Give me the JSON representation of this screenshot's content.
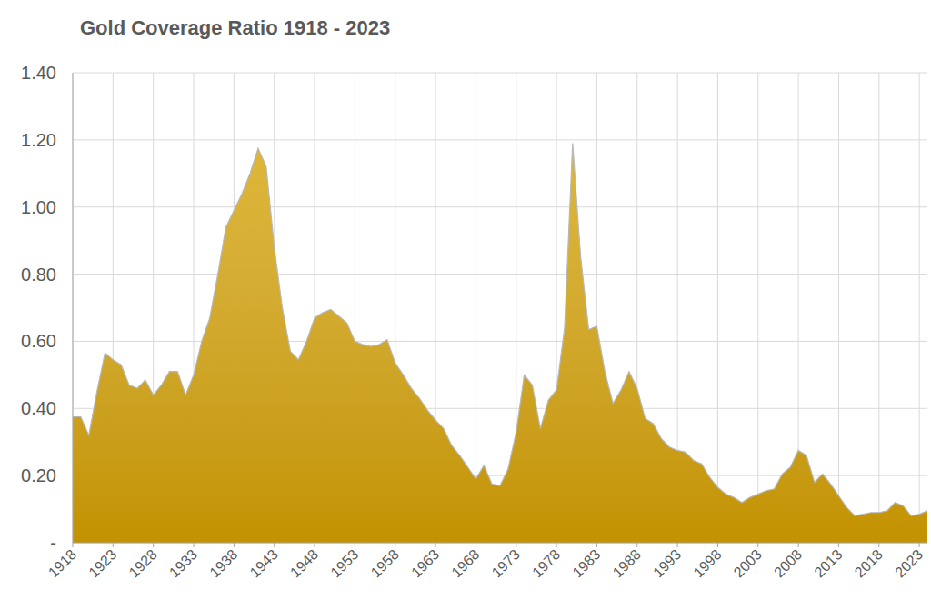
{
  "chart_data": {
    "type": "area",
    "title": "Gold Coverage Ratio 1918 - 2023",
    "x": [
      1918,
      1919,
      1920,
      1921,
      1922,
      1923,
      1924,
      1925,
      1926,
      1927,
      1928,
      1929,
      1930,
      1931,
      1932,
      1933,
      1934,
      1935,
      1936,
      1937,
      1938,
      1939,
      1940,
      1941,
      1942,
      1943,
      1944,
      1945,
      1946,
      1947,
      1948,
      1949,
      1950,
      1951,
      1952,
      1953,
      1954,
      1955,
      1956,
      1957,
      1958,
      1959,
      1960,
      1961,
      1962,
      1963,
      1964,
      1965,
      1966,
      1967,
      1968,
      1969,
      1970,
      1971,
      1972,
      1973,
      1974,
      1975,
      1976,
      1977,
      1978,
      1979,
      1980,
      1981,
      1982,
      1983,
      1984,
      1985,
      1986,
      1987,
      1988,
      1989,
      1990,
      1991,
      1992,
      1993,
      1994,
      1995,
      1996,
      1997,
      1998,
      1999,
      2000,
      2001,
      2002,
      2003,
      2004,
      2005,
      2006,
      2007,
      2008,
      2009,
      2010,
      2011,
      2012,
      2013,
      2014,
      2015,
      2016,
      2017,
      2018,
      2019,
      2020,
      2021,
      2022,
      2023,
      2024
    ],
    "values": [
      0.375,
      0.375,
      0.32,
      0.45,
      0.565,
      0.545,
      0.53,
      0.47,
      0.46,
      0.485,
      0.44,
      0.47,
      0.51,
      0.51,
      0.44,
      0.5,
      0.6,
      0.67,
      0.8,
      0.94,
      0.99,
      1.04,
      1.1,
      1.175,
      1.12,
      0.88,
      0.7,
      0.57,
      0.545,
      0.6,
      0.67,
      0.685,
      0.695,
      0.675,
      0.655,
      0.6,
      0.59,
      0.585,
      0.59,
      0.605,
      0.535,
      0.5,
      0.46,
      0.43,
      0.395,
      0.365,
      0.34,
      0.29,
      0.26,
      0.225,
      0.19,
      0.23,
      0.175,
      0.17,
      0.22,
      0.33,
      0.5,
      0.47,
      0.34,
      0.425,
      0.455,
      0.64,
      1.19,
      0.85,
      0.635,
      0.645,
      0.51,
      0.415,
      0.455,
      0.51,
      0.46,
      0.37,
      0.355,
      0.31,
      0.285,
      0.275,
      0.27,
      0.245,
      0.235,
      0.195,
      0.165,
      0.145,
      0.135,
      0.12,
      0.135,
      0.145,
      0.155,
      0.16,
      0.205,
      0.225,
      0.275,
      0.26,
      0.18,
      0.205,
      0.175,
      0.14,
      0.105,
      0.08,
      0.085,
      0.09,
      0.09,
      0.095,
      0.12,
      0.11,
      0.08,
      0.085,
      0.095
    ],
    "color": "#c39200",
    "xlim": [
      1918,
      2024
    ],
    "ylim": [
      0,
      1.4
    ],
    "xticks": [
      1918,
      1923,
      1928,
      1933,
      1938,
      1943,
      1948,
      1953,
      1958,
      1963,
      1968,
      1973,
      1978,
      1983,
      1988,
      1993,
      1998,
      2003,
      2008,
      2013,
      2018,
      2023
    ],
    "yticks": [
      {
        "value": 0,
        "label": "-"
      },
      {
        "value": 0.2,
        "label": "0.20"
      },
      {
        "value": 0.4,
        "label": "0.40"
      },
      {
        "value": 0.6,
        "label": "0.60"
      },
      {
        "value": 0.8,
        "label": "0.80"
      },
      {
        "value": 1.0,
        "label": "1.00"
      },
      {
        "value": 1.2,
        "label": "1.20"
      },
      {
        "value": 1.4,
        "label": "1.40"
      }
    ],
    "grid": true
  }
}
